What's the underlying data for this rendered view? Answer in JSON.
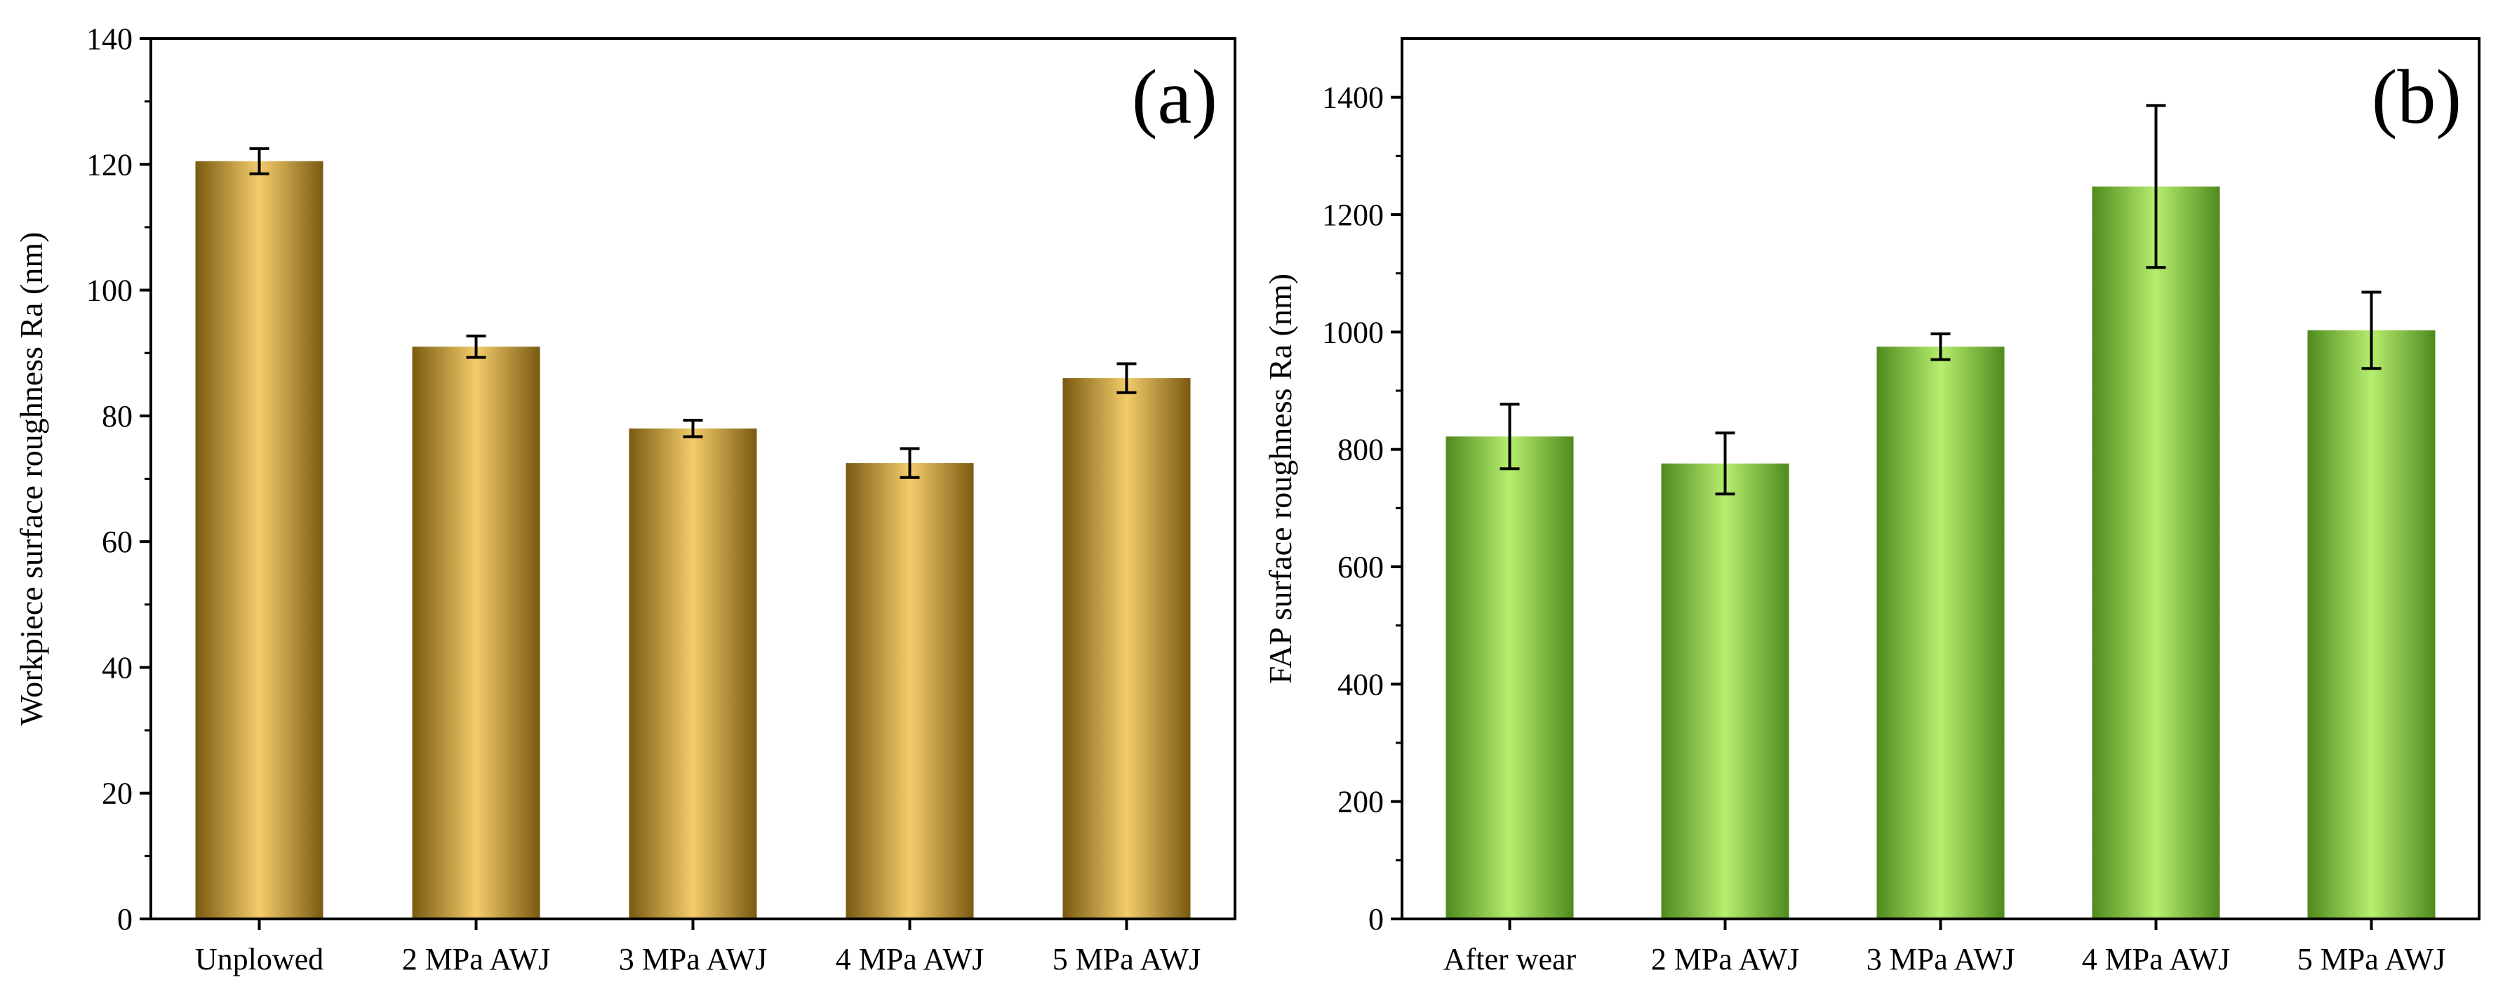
{
  "chart_data": [
    {
      "type": "bar",
      "panel_label": "(a)",
      "title": "",
      "xlabel": "",
      "ylabel": "Workpiece surface roughness Ra (nm)",
      "ylim": [
        0,
        140
      ],
      "yticks": [
        0,
        20,
        40,
        60,
        80,
        100,
        120,
        140
      ],
      "categories": [
        "Unplowed",
        "2 MPa AWJ",
        "3 MPa AWJ",
        "4 MPa AWJ",
        "5 MPa AWJ"
      ],
      "values": [
        120.5,
        91.0,
        78.0,
        72.5,
        86.0
      ],
      "errors": [
        2.0,
        1.7,
        1.3,
        2.3,
        2.3
      ],
      "colors": {
        "edge": "#7a5a12",
        "center": "#f3cc6a"
      },
      "grid": false,
      "legend": "none"
    },
    {
      "type": "bar",
      "panel_label": "(b)",
      "title": "",
      "xlabel": "",
      "ylabel": "FAP surface roughness Ra (nm)",
      "ylim": [
        0,
        1500
      ],
      "yticks": [
        0,
        200,
        400,
        600,
        800,
        1000,
        1200,
        1400
      ],
      "categories": [
        "After wear",
        "2 MPa AWJ",
        "3 MPa AWJ",
        "4 MPa AWJ",
        "5 MPa AWJ"
      ],
      "values": [
        822,
        776,
        975,
        1248,
        1003
      ],
      "errors": [
        55,
        52,
        22,
        138,
        65
      ],
      "colors": {
        "edge": "#4f8a1e",
        "center": "#b6ee6e"
      },
      "grid": false,
      "legend": "none"
    }
  ]
}
